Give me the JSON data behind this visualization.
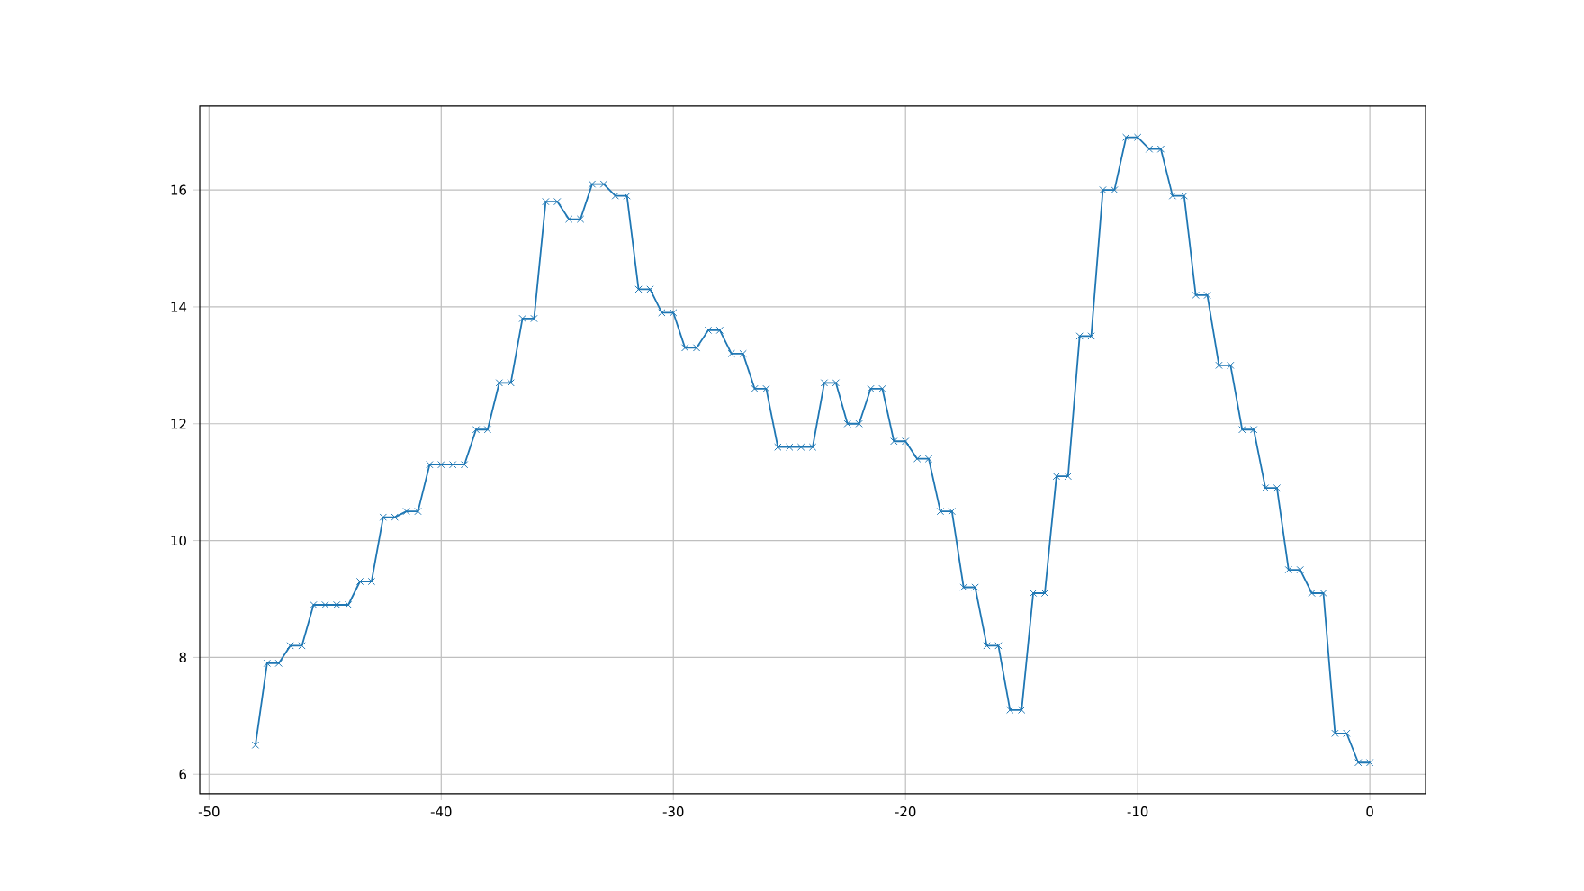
{
  "chart_data": {
    "type": "line",
    "x": [
      -48,
      -47.5,
      -47,
      -46.5,
      -46,
      -45.5,
      -45,
      -44.5,
      -44,
      -43.5,
      -43,
      -42.5,
      -42,
      -41.5,
      -41,
      -40.5,
      -40,
      -39.5,
      -39,
      -38.5,
      -38,
      -37.5,
      -37,
      -36.5,
      -36,
      -35.5,
      -35,
      -34.5,
      -34,
      -33.5,
      -33,
      -32.5,
      -32,
      -31.5,
      -31,
      -30.5,
      -30,
      -29.5,
      -29,
      -28.5,
      -28,
      -27.5,
      -27,
      -26.5,
      -26,
      -25.5,
      -25,
      -24.5,
      -24,
      -23.5,
      -23,
      -22.5,
      -22,
      -21.5,
      -21,
      -20.5,
      -20,
      -19.5,
      -19,
      -18.5,
      -18,
      -17.5,
      -17,
      -16.5,
      -16,
      -15.5,
      -15,
      -14.5,
      -14,
      -13.5,
      -13,
      -12.5,
      -12,
      -11.5,
      -11,
      -10.5,
      -10,
      -9.5,
      -9,
      -8.5,
      -8,
      -7.5,
      -7,
      -6.5,
      -6,
      -5.5,
      -5,
      -4.5,
      -4,
      -3.5,
      -3,
      -2.5,
      -2,
      -1.5,
      -1,
      -0.5,
      0
    ],
    "series": [
      {
        "color": "#1f77b4",
        "values": [
          6.5,
          7.9,
          7.9,
          8.2,
          8.2,
          8.9,
          8.9,
          8.9,
          8.9,
          9.3,
          9.3,
          10.4,
          10.4,
          10.5,
          10.5,
          11.3,
          11.3,
          11.3,
          11.3,
          11.9,
          11.9,
          12.7,
          12.7,
          13.8,
          13.8,
          15.8,
          15.8,
          15.5,
          15.5,
          16.1,
          16.1,
          15.9,
          15.9,
          14.3,
          14.3,
          13.9,
          13.9,
          13.3,
          13.3,
          13.6,
          13.6,
          13.2,
          13.2,
          12.6,
          12.6,
          11.6,
          11.6,
          11.6,
          11.6,
          12.7,
          12.7,
          12.0,
          12.0,
          12.6,
          12.6,
          11.7,
          11.7,
          11.4,
          11.4,
          10.5,
          10.5,
          9.2,
          9.2,
          8.2,
          8.2,
          7.1,
          7.1,
          9.1,
          9.1,
          11.1,
          11.1,
          13.5,
          13.5,
          16.0,
          16.0,
          16.9,
          16.9,
          16.7,
          16.7,
          15.9,
          15.9,
          14.2,
          14.2,
          13.0,
          13.0,
          11.9,
          11.9,
          10.9,
          10.9,
          9.5,
          9.5,
          9.1,
          9.1,
          6.7,
          6.7,
          6.2,
          6.2
        ]
      }
    ],
    "xlim": [
      -50.4,
      2.4
    ],
    "ylim": [
      5.665,
      17.435
    ],
    "xticks": [
      -50,
      -40,
      -30,
      -20,
      -10,
      0
    ],
    "yticks": [
      6,
      8,
      10,
      12,
      14,
      16
    ],
    "grid": true,
    "marker": "cross",
    "line_style": "solid"
  }
}
